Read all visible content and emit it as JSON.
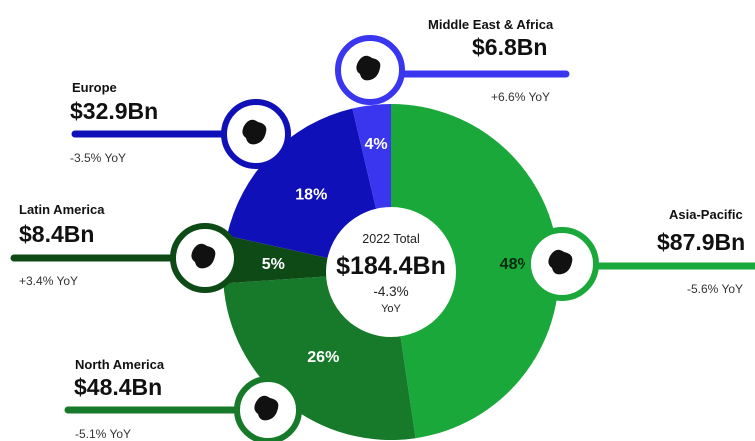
{
  "chart_data": {
    "type": "pie",
    "center": {
      "title": "2022 Total",
      "value": "$184.4Bn",
      "change": "-4.3%",
      "change_label": "YoY"
    },
    "slices": [
      {
        "key": "apac",
        "region": "Asia-Pacific",
        "value_label": "$87.9Bn",
        "value": 87.9,
        "share": 48,
        "share_label": "48%",
        "yoy": "-5.6% YoY",
        "color": "#1aa83a",
        "icon": "asia-pacific-map-icon"
      },
      {
        "key": "na",
        "region": "North America",
        "value_label": "$48.4Bn",
        "value": 48.4,
        "share": 26,
        "share_label": "26%",
        "yoy": "-5.1% YoY",
        "color": "#177a2a",
        "icon": "north-america-map-icon"
      },
      {
        "key": "latam",
        "region": "Latin America",
        "value_label": "$8.4Bn",
        "value": 8.4,
        "share": 5,
        "share_label": "5%",
        "yoy": "+3.4% YoY",
        "color": "#0d4a16",
        "icon": "latin-america-map-icon"
      },
      {
        "key": "europe",
        "region": "Europe",
        "value_label": "$32.9Bn",
        "value": 32.9,
        "share": 18,
        "share_label": "18%",
        "yoy": "-3.5% YoY",
        "color": "#1010b8",
        "icon": "europe-map-icon"
      },
      {
        "key": "mea",
        "region": "Middle East & Africa",
        "value_label": "$6.8Bn",
        "value": 6.8,
        "share": 4,
        "share_label": "4%",
        "yoy": "+6.6% YoY",
        "color": "#3a36f0",
        "icon": "africa-map-icon"
      }
    ]
  }
}
